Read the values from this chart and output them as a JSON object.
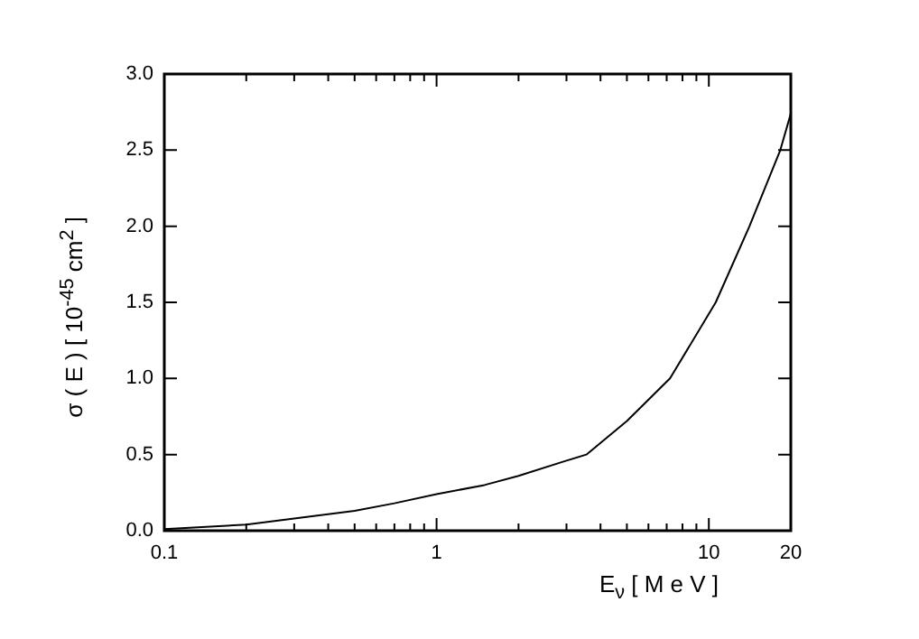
{
  "chart_data": {
    "type": "line",
    "xlabel": "E$_{ν}$ [ M e V ]",
    "ylabel": "σ ( E ) [ 10$^{-45}$ cm$^{2}$ ]",
    "log": "x",
    "xlim": [
      0.1,
      20
    ],
    "ylim": [
      0,
      3
    ],
    "xticks": [
      0.1,
      {
        "value": 0.2,
        "label": null
      },
      {
        "value": 0.3,
        "label": null
      },
      {
        "value": 0.4,
        "label": null
      },
      {
        "value": 0.5,
        "label": null
      },
      {
        "value": 0.6,
        "label": null
      },
      {
        "value": 0.7,
        "label": null
      },
      {
        "value": 0.8,
        "label": null
      },
      {
        "value": 0.9,
        "label": null
      },
      1,
      {
        "value": 2,
        "label": null
      },
      {
        "value": 3,
        "label": null
      },
      {
        "value": 4,
        "label": null
      },
      {
        "value": 5,
        "label": null
      },
      {
        "value": 6,
        "label": null
      },
      {
        "value": 7,
        "label": null
      },
      {
        "value": 8,
        "label": null
      },
      {
        "value": 9,
        "label": null
      },
      10,
      20
    ],
    "yticks": [
      {
        "value": 0,
        "label": "0.0"
      },
      0.5,
      {
        "value": 1,
        "label": "1.0"
      },
      1.5,
      {
        "value": 2,
        "label": "2.0"
      },
      2.5,
      {
        "value": 3,
        "label": "3.0"
      }
    ],
    "grid": false,
    "legend": false,
    "marker": "none",
    "line_style": "solid",
    "series": [
      {
        "color": "#000000",
        "x": [
          0.1,
          0.2,
          0.3,
          0.5,
          0.7,
          1,
          1.5,
          2,
          3,
          3.55,
          5,
          7.2,
          10.6,
          14.1,
          18.3,
          20
        ],
        "values": [
          0.01,
          0.04,
          0.08,
          0.13,
          0.18,
          0.24,
          0.3,
          0.36,
          0.46,
          0.5,
          0.72,
          1.0,
          1.5,
          2.0,
          2.5,
          2.74
        ]
      }
    ]
  }
}
